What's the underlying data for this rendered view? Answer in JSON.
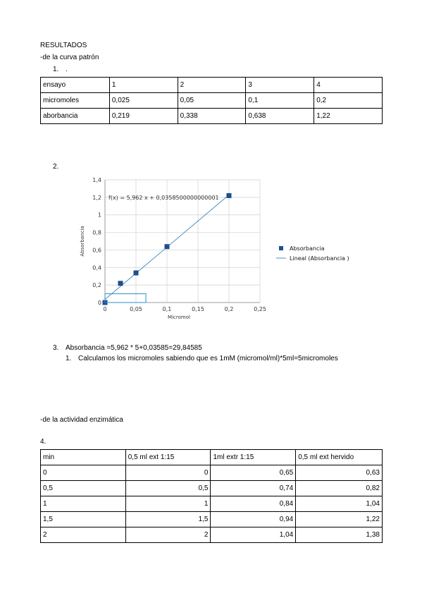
{
  "heading": "RESULTADOS",
  "section1": "-de la curva patrón",
  "item1": {
    "number": "1.",
    "text": "."
  },
  "table1": {
    "rows": [
      [
        "ensayo",
        "1",
        "2",
        "3",
        "4"
      ],
      [
        "micromoles",
        "0,025",
        "0,05",
        "0,1",
        "0,2"
      ],
      [
        "aborbancia",
        "0,219",
        "0,338",
        "0,638",
        "1,22"
      ]
    ]
  },
  "item2": "2.",
  "chart_data": {
    "type": "scatter",
    "xlabel": "Micromol",
    "ylabel": "Absorbancia",
    "xlim": [
      0,
      0.25
    ],
    "ylim": [
      0,
      1.4
    ],
    "x_ticks": [
      "0",
      "0,05",
      "0,1",
      "0,15",
      "0,2",
      "0,25"
    ],
    "y_ticks": [
      "0",
      "0,2",
      "0,4",
      "0,6",
      "0,8",
      "1",
      "1,2",
      "1,4"
    ],
    "series": [
      {
        "name": "Absorbancia",
        "x": [
          0,
          0.025,
          0.05,
          0.1,
          0.2
        ],
        "y": [
          0,
          0.219,
          0.338,
          0.638,
          1.22
        ],
        "color": "#1f4e8c"
      }
    ],
    "trendline": {
      "name": "Lineal (Absorbancia )",
      "slope": 5.962,
      "intercept": 0.03585,
      "color": "#1f77b4"
    },
    "equation_label": "f(x) = 5,962 x + 0,0358500000000001",
    "grid": true,
    "legend_position": "right"
  },
  "item3": {
    "number": "3.",
    "text": "Absorbancia =5,962 * 5+0,03585=29,84585"
  },
  "item3_sub": {
    "number": "1.",
    "text": "Calculamos los micromoles sabiendo que es 1mM (micromol/ml)*5ml=5micromoles"
  },
  "section2": "-de la actividad enzimática",
  "item4": "4.",
  "table2": {
    "header": [
      "min",
      "0,5 ml ext 1:15",
      "1ml extr 1:15",
      "0,5 ml ext hervido"
    ],
    "rows": [
      [
        "0",
        "0",
        "0,65",
        "0,63"
      ],
      [
        "0,5",
        "0,5",
        "0,74",
        "0,82"
      ],
      [
        "1",
        "1",
        "0,84",
        "1,04"
      ],
      [
        "1,5",
        "1,5",
        "0,94",
        "1,22"
      ],
      [
        "2",
        "2",
        "1,04",
        "1,38"
      ]
    ]
  }
}
